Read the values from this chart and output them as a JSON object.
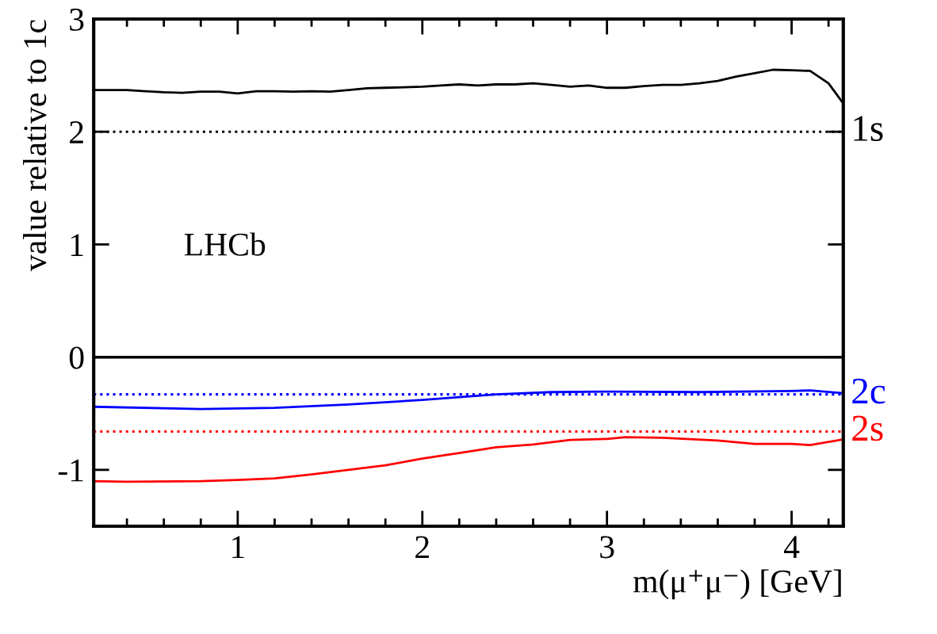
{
  "chart_data": {
    "type": "line",
    "xlabel": "m(μ⁺μ⁻) [GeV]",
    "ylabel": "value relative to 1c",
    "xlim": [
      0.22,
      4.28
    ],
    "xticks": [
      1,
      2,
      3,
      4
    ],
    "ylim": [
      -1.5,
      3
    ],
    "yticks": [
      -1,
      0,
      1,
      2,
      3
    ],
    "grid": false,
    "legend": false,
    "line_style": "solid",
    "marker": "none",
    "annotations": [
      "LHCb"
    ],
    "ref_lines": [
      {
        "axis": "y",
        "value": 0,
        "color": "#000000",
        "line_style": "solid"
      },
      {
        "axis": "y",
        "value": 2,
        "label": "1s",
        "color": "#000000",
        "line_style": "dotted"
      },
      {
        "axis": "y",
        "value": -0.33,
        "label": "2c",
        "color": "#0000ff",
        "line_style": "dotted"
      },
      {
        "axis": "y",
        "value": -0.66,
        "label": "2s",
        "color": "#ff0000",
        "line_style": "dotted"
      }
    ],
    "series": [
      {
        "color": "#000000",
        "x": [
          0.22,
          0.3,
          0.4,
          0.5,
          0.6,
          0.7,
          0.8,
          0.9,
          1.0,
          1.1,
          1.2,
          1.3,
          1.4,
          1.5,
          1.6,
          1.7,
          1.8,
          1.9,
          2.0,
          2.1,
          2.2,
          2.3,
          2.4,
          2.5,
          2.6,
          2.7,
          2.8,
          2.9,
          3.0,
          3.1,
          3.2,
          3.3,
          3.4,
          3.5,
          3.6,
          3.7,
          3.8,
          3.9,
          4.0,
          4.1,
          4.2,
          4.28
        ],
        "values": [
          2.37,
          2.37,
          2.37,
          2.36,
          2.35,
          2.345,
          2.355,
          2.355,
          2.34,
          2.36,
          2.36,
          2.355,
          2.36,
          2.355,
          2.37,
          2.385,
          2.39,
          2.395,
          2.4,
          2.41,
          2.42,
          2.41,
          2.42,
          2.42,
          2.43,
          2.415,
          2.4,
          2.41,
          2.39,
          2.39,
          2.405,
          2.415,
          2.415,
          2.43,
          2.45,
          2.49,
          2.52,
          2.55,
          2.545,
          2.54,
          2.43,
          2.25
        ]
      },
      {
        "color": "#0000ff",
        "x": [
          0.22,
          0.8,
          1.2,
          1.6,
          2.0,
          2.4,
          2.7,
          3.0,
          3.5,
          4.0,
          4.1,
          4.28
        ],
        "values": [
          -0.44,
          -0.46,
          -0.45,
          -0.42,
          -0.38,
          -0.33,
          -0.31,
          -0.305,
          -0.31,
          -0.3,
          -0.295,
          -0.32
        ]
      },
      {
        "color": "#ff0000",
        "x": [
          0.22,
          0.4,
          0.8,
          1.0,
          1.2,
          1.4,
          1.6,
          1.8,
          2.0,
          2.2,
          2.4,
          2.6,
          2.8,
          3.0,
          3.1,
          3.3,
          3.6,
          3.8,
          4.0,
          4.1,
          4.28
        ],
        "values": [
          -1.1,
          -1.105,
          -1.1,
          -1.09,
          -1.075,
          -1.04,
          -1.0,
          -0.96,
          -0.9,
          -0.85,
          -0.8,
          -0.775,
          -0.735,
          -0.725,
          -0.71,
          -0.715,
          -0.74,
          -0.77,
          -0.77,
          -0.78,
          -0.73
        ]
      }
    ]
  }
}
